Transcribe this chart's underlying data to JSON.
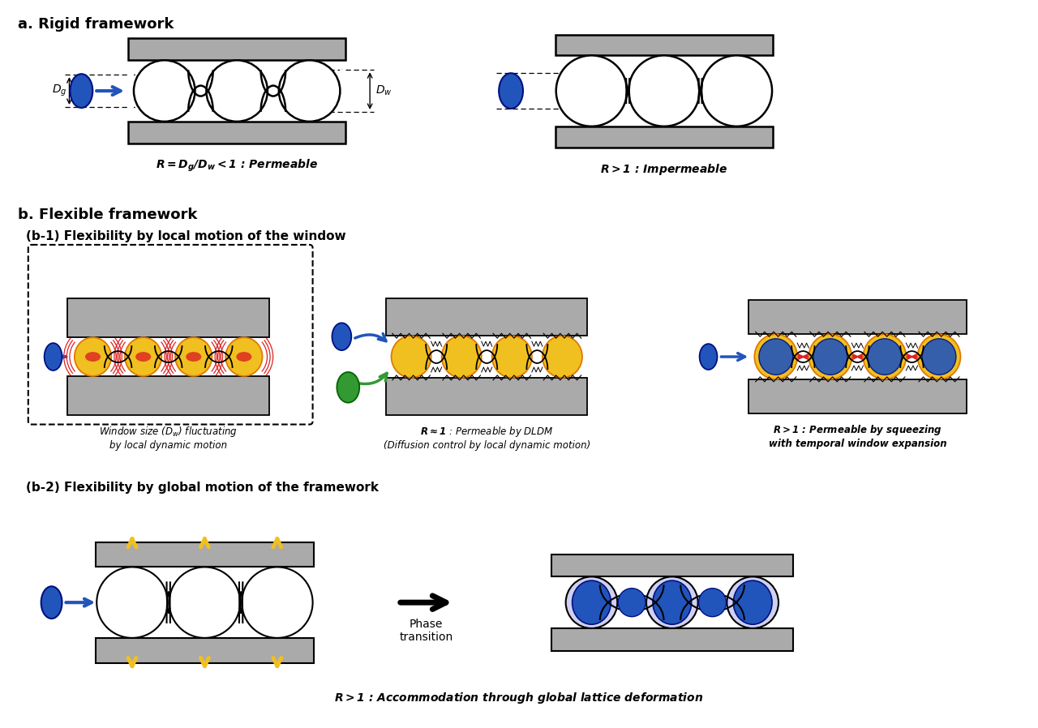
{
  "bg_color": "#ffffff",
  "gray_color": "#aaaaaa",
  "blue_color": "#2255bb",
  "yellow_color": "#f0c020",
  "red_color": "#dd2222",
  "green_color": "#339933",
  "black": "#000000",
  "orange_color": "#e07800",
  "section_a_label": "a. Rigid framework",
  "section_b_label": "b. Flexible framework",
  "b1_label": "(b-1) Flexibility by local motion of the window",
  "b2_label": "(b-2) Flexibility by global motion of the framework",
  "caption_permeable": "$\\bfit{R} = D_g/D_w < 1$ : Permeable",
  "caption_impermeable": "$\\bfit{R} > 1$ : Impermeable",
  "caption_b1_1": "Window size ($D_w$) fluctuating\nby local dynamic motion",
  "caption_b1_2": "$\\bfit{R} \\approx 1$ : Permeable by DLDM\n(Diffusion control by local dynamic motion)",
  "caption_b1_3": "$\\bfit{R} > 1$ : Permeable by squeezing\nwith temporal window expansion",
  "caption_b2": "$\\bfit{R} > 1$ : Accommodation through global lattice deformation",
  "phase_transition": "Phase\ntransition"
}
